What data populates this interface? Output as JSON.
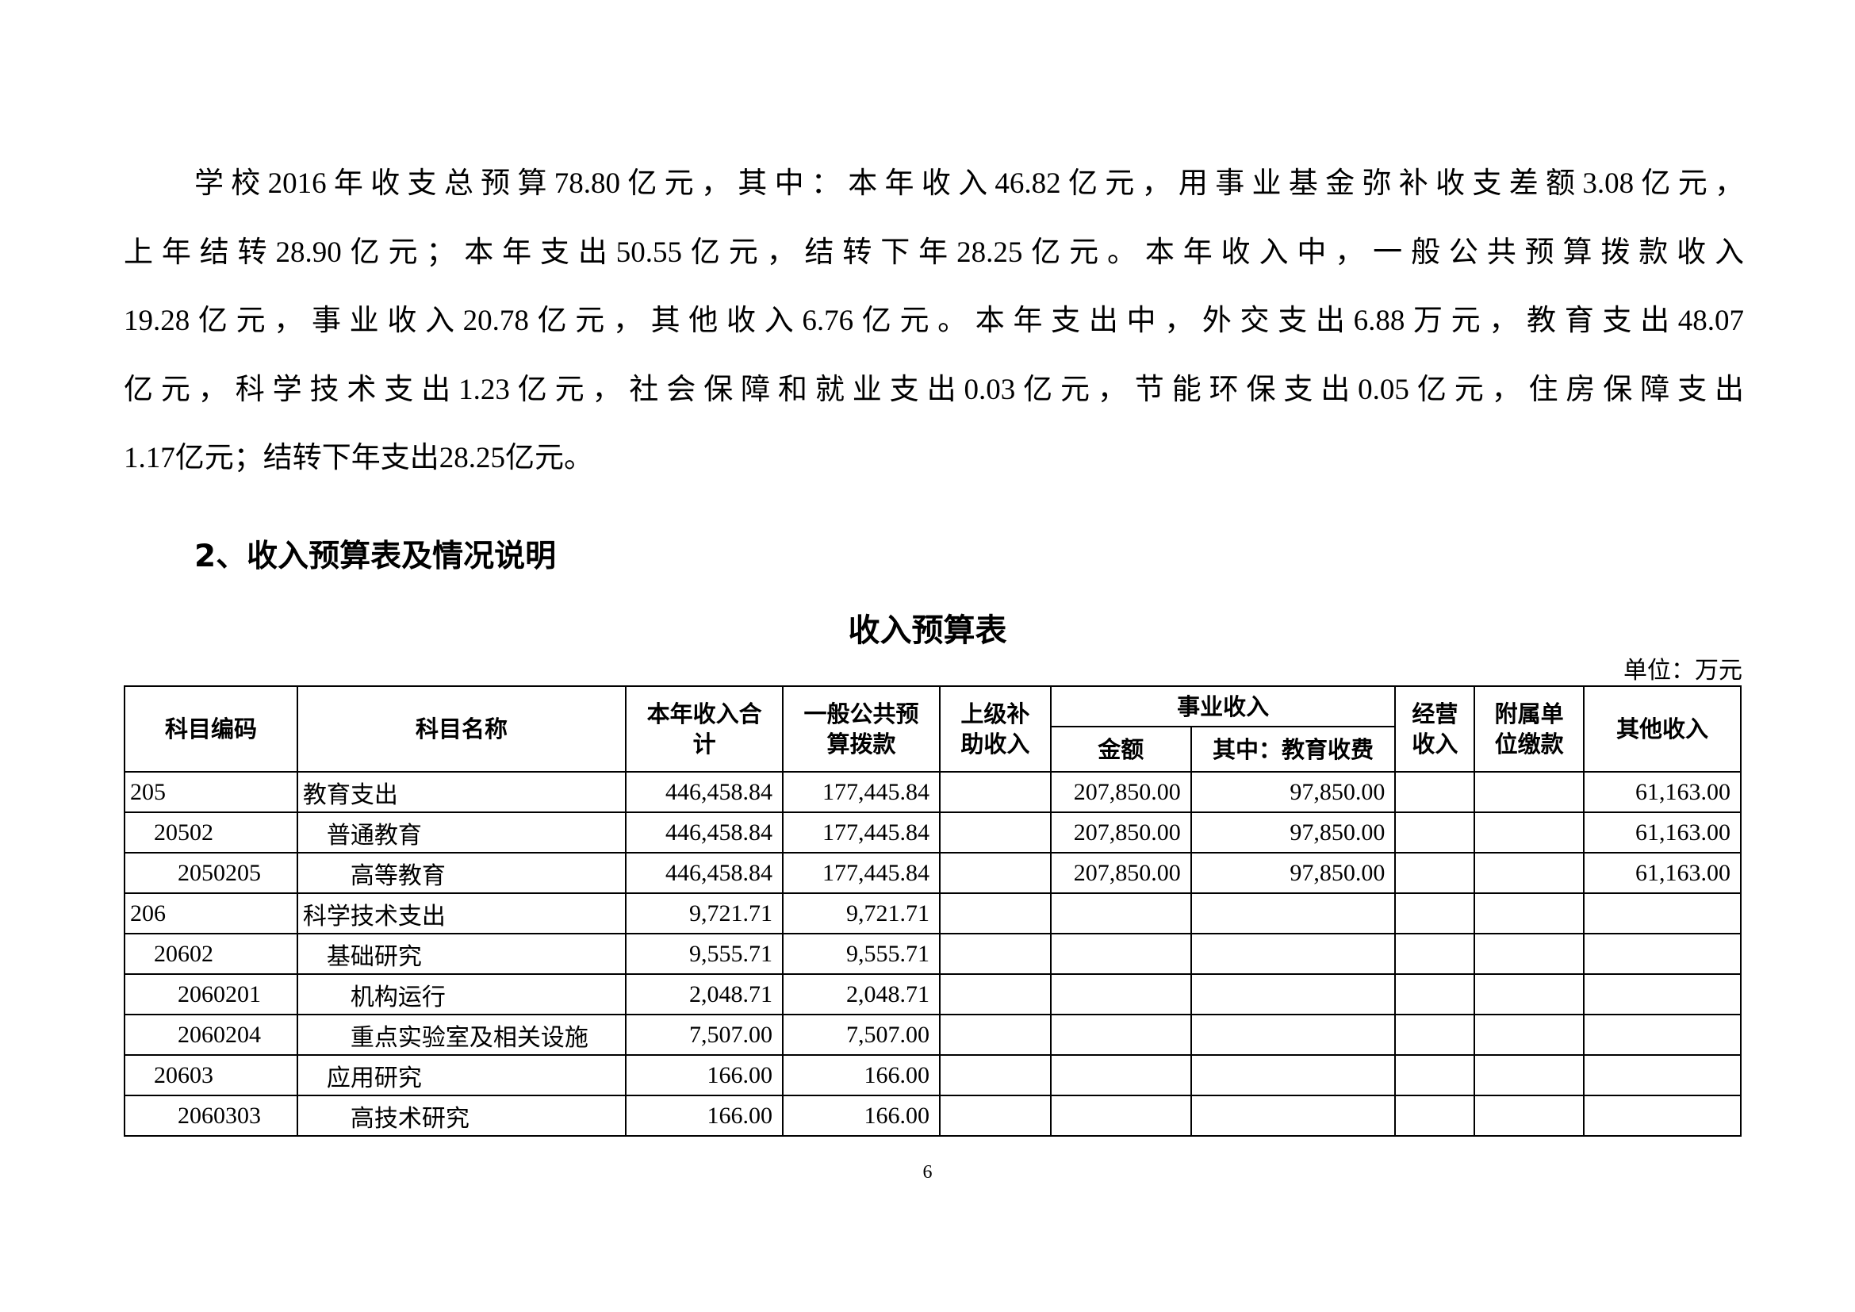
{
  "paragraph_lines": [
    "学校2016年收支总预算78.80亿元，其中：本年收入46.82亿元，用事业基金弥补收支差额3.08亿元，",
    "上年结转28.90亿元；本年支出50.55亿元，结转下年28.25亿元。本年收入中，一般公共预算拨款收入",
    "19.28亿元，事业收入20.78亿元，其他收入6.76亿元。本年支出中，外交支出6.88万元，教育支出48.07",
    "亿元，科学技术支出1.23亿元，社会保障和就业支出0.03亿元，节能环保支出0.05亿元，住房保障支出",
    "1.17亿元；结转下年支出28.25亿元。"
  ],
  "section_heading": "2、收入预算表及情况说明",
  "table_title": "收入预算表",
  "unit": "单位：万元",
  "headers": {
    "code": "科目编码",
    "name": "科目名称",
    "total": "本年收入合计",
    "public": "一般公共预算拨款",
    "superior": "上级补助收入",
    "business": "事业收入",
    "business_amount": "金额",
    "business_edu": "其中：教育收费",
    "operating": "经营收入",
    "affiliated": "附属单位缴款",
    "other": "其他收入"
  },
  "rows": [
    {
      "level": 1,
      "code": "205",
      "name": "教育支出",
      "total": "446,458.84",
      "public": "177,445.84",
      "superior": "",
      "amount": "207,850.00",
      "edu": "97,850.00",
      "operating": "",
      "affiliated": "",
      "other": "61,163.00"
    },
    {
      "level": 2,
      "code": "20502",
      "name": "普通教育",
      "total": "446,458.84",
      "public": "177,445.84",
      "superior": "",
      "amount": "207,850.00",
      "edu": "97,850.00",
      "operating": "",
      "affiliated": "",
      "other": "61,163.00"
    },
    {
      "level": 3,
      "code": "2050205",
      "name": "高等教育",
      "total": "446,458.84",
      "public": "177,445.84",
      "superior": "",
      "amount": "207,850.00",
      "edu": "97,850.00",
      "operating": "",
      "affiliated": "",
      "other": "61,163.00"
    },
    {
      "level": 1,
      "code": "206",
      "name": "科学技术支出",
      "total": "9,721.71",
      "public": "9,721.71",
      "superior": "",
      "amount": "",
      "edu": "",
      "operating": "",
      "affiliated": "",
      "other": ""
    },
    {
      "level": 2,
      "code": "20602",
      "name": "基础研究",
      "total": "9,555.71",
      "public": "9,555.71",
      "superior": "",
      "amount": "",
      "edu": "",
      "operating": "",
      "affiliated": "",
      "other": ""
    },
    {
      "level": 3,
      "code": "2060201",
      "name": "机构运行",
      "total": "2,048.71",
      "public": "2,048.71",
      "superior": "",
      "amount": "",
      "edu": "",
      "operating": "",
      "affiliated": "",
      "other": ""
    },
    {
      "level": 3,
      "code": "2060204",
      "name": "重点实验室及相关设施",
      "total": "7,507.00",
      "public": "7,507.00",
      "superior": "",
      "amount": "",
      "edu": "",
      "operating": "",
      "affiliated": "",
      "other": ""
    },
    {
      "level": 2,
      "code": "20603",
      "name": "应用研究",
      "total": "166.00",
      "public": "166.00",
      "superior": "",
      "amount": "",
      "edu": "",
      "operating": "",
      "affiliated": "",
      "other": ""
    },
    {
      "level": 3,
      "code": "2060303",
      "name": "高技术研究",
      "total": "166.00",
      "public": "166.00",
      "superior": "",
      "amount": "",
      "edu": "",
      "operating": "",
      "affiliated": "",
      "other": ""
    }
  ],
  "page_number": "6"
}
